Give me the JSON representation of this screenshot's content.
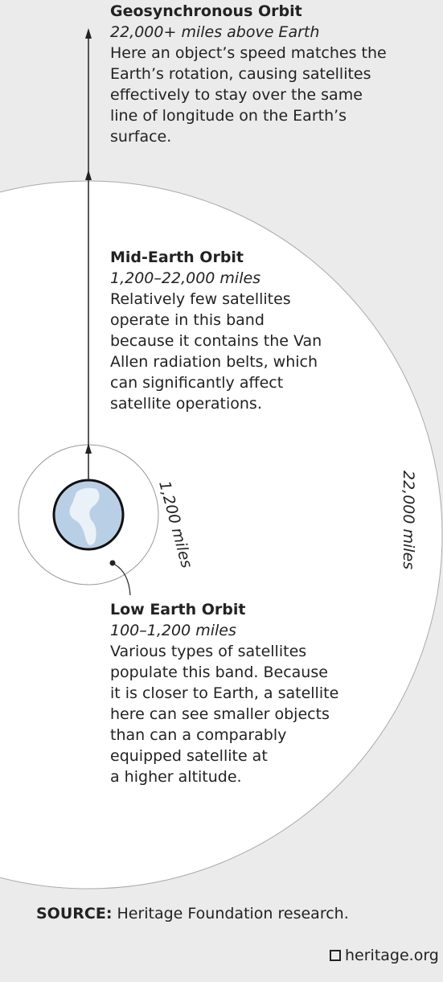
{
  "sections": [
    {
      "title": "Geosynchronous Orbit",
      "subtitle": "22,000+ miles above Earth",
      "lines": [
        "Here an object’s speed matches the",
        "Earth’s rotation, causing satellites",
        "effectively to stay over the same",
        "line of longitude on the Earth’s",
        "surface."
      ]
    },
    {
      "title": "Mid-Earth Orbit",
      "subtitle": "1,200–22,000 miles",
      "lines": [
        "Relatively few satellites",
        "operate in this band",
        "because it contains the Van",
        "Allen radiation belts, which",
        "can significantly affect",
        "satellite operations."
      ]
    },
    {
      "title": "Low Earth Orbit",
      "subtitle": "100–1,200 miles",
      "lines": [
        "Various types of satellites",
        "populate this band. Because",
        "it is closer to Earth, a satellite",
        "here can see smaller objects",
        "than can a comparably",
        "equipped satellite at",
        "a higher altitude."
      ]
    }
  ],
  "radius_labels": {
    "inner": "1,200 miles",
    "outer": "22,000 miles"
  },
  "footer": {
    "source_label": "SOURCE:",
    "source_text": " Heritage Foundation research.",
    "site": "heritage.org"
  }
}
